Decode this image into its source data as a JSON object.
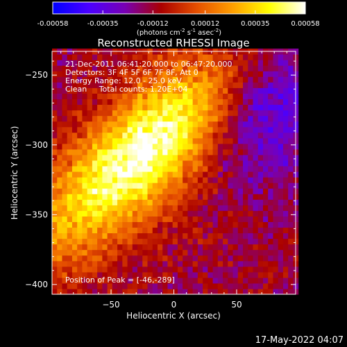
{
  "chart_data": {
    "type": "heatmap",
    "title": "Reconstructed RHESSI Image",
    "xlabel": "Heliocentric X (arcsec)",
    "ylabel": "Heliocentric Y (arcsec)",
    "xlim": [
      -97,
      97
    ],
    "ylim": [
      -407,
      -233
    ],
    "x_ticks": [
      -50,
      0,
      50
    ],
    "y_ticks": [
      -400,
      -350,
      -300,
      -250
    ],
    "colorbar": {
      "ticks": [
        -0.00058,
        -0.00035,
        -0.00012,
        0.00012,
        0.00035,
        0.00058
      ],
      "tick_labels": [
        "-0.00058",
        "-0.00035",
        "-0.00012",
        "0.00012",
        "0.00035",
        "0.00058"
      ],
      "range": [
        -0.00058,
        0.00058
      ],
      "unit_label_main": "(photons cm",
      "unit_sup1": "-2",
      "unit_s": " s",
      "unit_sup2": "-1",
      "unit_asec": " asec",
      "unit_sup3": "-2",
      "unit_close": ")"
    },
    "annotations": [
      "21-Dec-2011 06:41:20.000 to 06:47:20.000",
      "Detectors: 3F 4F 5F 6F 7F 8F, Att 0",
      "Energy Range: 12.0 - 25.0 keV",
      "Clean     Total counts: 1.20E+04"
    ],
    "peak_label": "Position of Peak = [-46,-289]",
    "peak": [
      -46,
      -289
    ],
    "source": {
      "center": [
        -25,
        -305
      ],
      "major_sigma": 75,
      "minor_sigma": 26,
      "angle_deg": 40,
      "peak_value": 0.00058,
      "background_value": -0.00012
    }
  },
  "footer": {
    "date": "17-May-2022 04:07"
  },
  "colors": {
    "background": "#000000",
    "text": "#ffffff",
    "colormap": [
      "#0000ff",
      "#4b00ff",
      "#7800b4",
      "#aa0000",
      "#e65000",
      "#ffa000",
      "#ffff00",
      "#ffffff"
    ]
  }
}
